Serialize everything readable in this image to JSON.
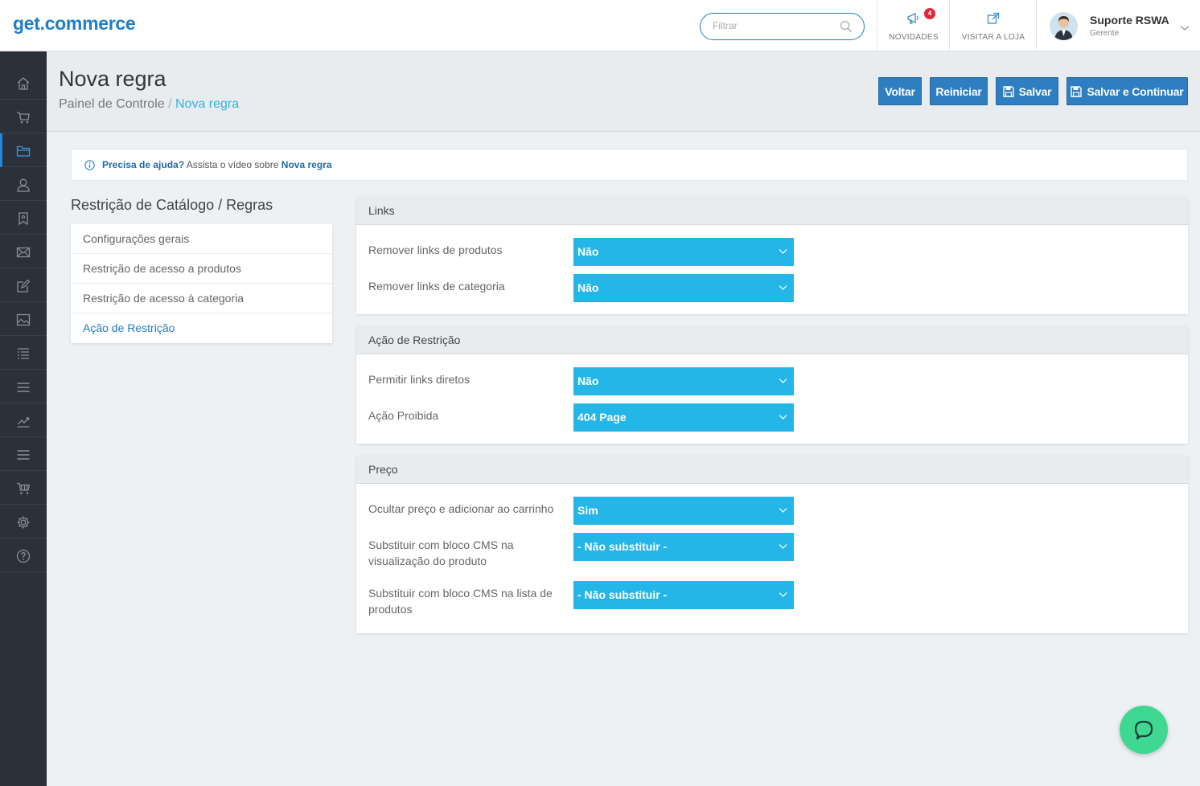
{
  "header": {
    "logo": "get.commerce",
    "search_placeholder": "Filtrar",
    "news_label": "NOVIDADES",
    "news_badge": "4",
    "visit_label": "VISITAR A LOJA",
    "user_name": "Suporte RSWA",
    "user_role": "Gerente"
  },
  "sidebar": {
    "items": [
      "home-icon",
      "cart-icon",
      "folder-icon",
      "user-icon",
      "tag-icon",
      "mail-icon",
      "edit-icon",
      "image-icon",
      "list-icon",
      "menu-icon",
      "chart-icon",
      "menu-icon",
      "store-cart-icon",
      "gear-icon",
      "help-icon"
    ],
    "active_index": 2
  },
  "page": {
    "title": "Nova regra",
    "breadcrumb_root": "Painel de Controle",
    "breadcrumb_sep": "/",
    "breadcrumb_current": "Nova regra",
    "buttons": {
      "back": "Voltar",
      "reset": "Reiniciar",
      "save": "Salvar",
      "save_continue": "Salvar e Continuar"
    }
  },
  "help": {
    "lead": "Precisa de ajuda?",
    "text": "Assista o vídeo sobre",
    "topic": "Nova regra"
  },
  "nav": {
    "title": "Restrição de Catálogo / Regras",
    "items": [
      "Configurações gerais",
      "Restrição de acesso a produtos",
      "Restrição de acesso à categoria",
      "Ação de Restrição"
    ],
    "active_index": 3
  },
  "sections": [
    {
      "title": "Links",
      "fields": [
        {
          "label": "Remover links de produtos",
          "value": "Não"
        },
        {
          "label": "Remover links de categoria",
          "value": "Não"
        }
      ]
    },
    {
      "title": "Ação de Restrição",
      "fields": [
        {
          "label": "Permitir links diretos",
          "value": "Não"
        },
        {
          "label": "Ação Proibida",
          "value": "404 Page"
        }
      ]
    },
    {
      "title": "Preço",
      "fields": [
        {
          "label": "Ocultar preço e adicionar ao carrinho",
          "value": "Sim"
        },
        {
          "label": "Substituir com bloco CMS na visualização do produto",
          "value": "- Não substituir -"
        },
        {
          "label": "Substituir com bloco CMS na lista de produtos",
          "value": "- Não substituir -"
        }
      ]
    }
  ],
  "colors": {
    "brand": "#1e7ec8",
    "select_bg": "#25b6e8",
    "button_bg": "#2f7ec1",
    "sidebar_bg": "#2b3039",
    "chat_bg": "#3fd892",
    "badge": "#e3263b"
  }
}
